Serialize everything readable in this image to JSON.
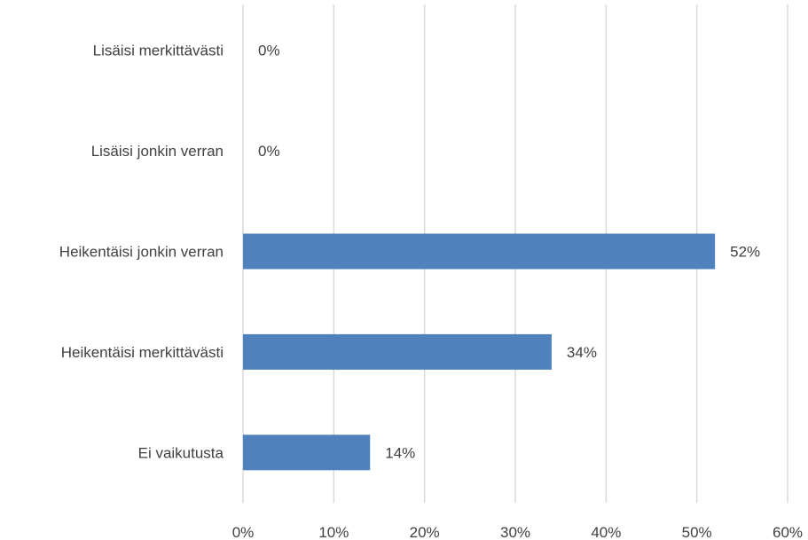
{
  "chart_data": {
    "type": "bar",
    "orientation": "horizontal",
    "title": "",
    "xlabel": "",
    "ylabel": "",
    "categories": [
      "Lisäisi merkittävästi",
      "Lisäisi jonkin verran",
      "Heikentäisi jonkin verran",
      "Heikentäisi merkittävästi",
      "Ei vaikutusta"
    ],
    "values": [
      0,
      0,
      52,
      34,
      14
    ],
    "data_labels": [
      "0%",
      "0%",
      "52%",
      "34%",
      "14%"
    ],
    "xlim": [
      0,
      60
    ],
    "x_ticks": [
      "0%",
      "10%",
      "20%",
      "30%",
      "40%",
      "50%",
      "60%"
    ],
    "grid": "vertical",
    "legend": "none",
    "bar_color": "#4f81bd"
  }
}
